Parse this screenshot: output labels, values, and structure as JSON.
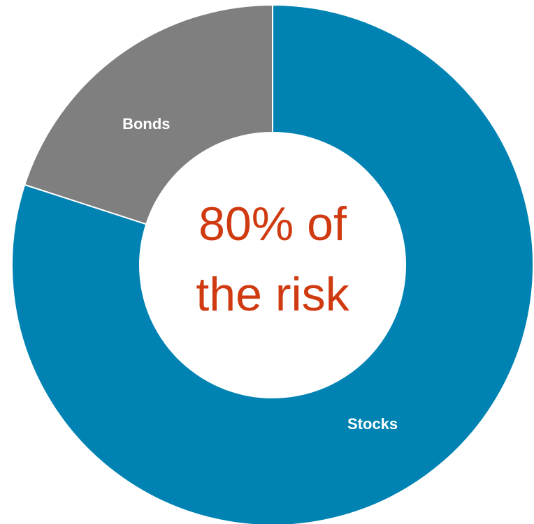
{
  "chart_data": {
    "type": "pie",
    "donut": true,
    "categories": [
      "Stocks",
      "Bonds"
    ],
    "values": [
      80,
      20
    ],
    "colors": [
      "#0083b3",
      "#7f7f7f"
    ],
    "center_text_lines": [
      "80% of",
      "the risk"
    ],
    "center_text_color": "#d03a10",
    "slice_label_color": "#ffffff",
    "legend": false
  }
}
